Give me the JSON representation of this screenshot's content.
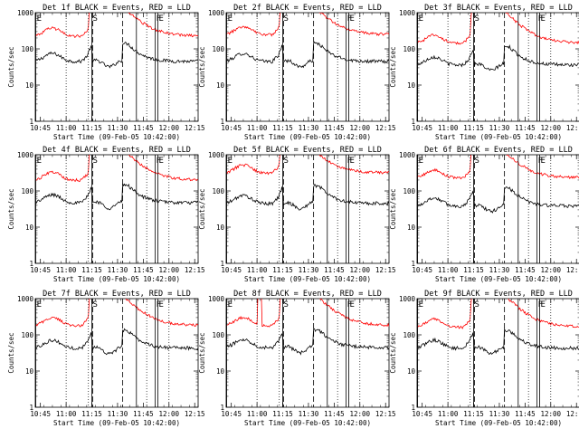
{
  "chart_data": {
    "type": "line",
    "panels": [
      {
        "title": "Det 1f BLACK = Events, RED = LLD",
        "red_scale": 5.0,
        "red_peak": 1.0,
        "black_peak": 1.0,
        "spike": 0
      },
      {
        "title": "Det 2f BLACK = Events, RED = LLD",
        "red_scale": 5.5,
        "red_peak": 1.0,
        "black_peak": 1.0,
        "spike": 0
      },
      {
        "title": "Det 3f BLACK = Events, RED = LLD",
        "red_scale": 4.0,
        "red_peak": 0.75,
        "black_peak": 0.8,
        "spike": 0
      },
      {
        "title": "Det 4f BLACK = Events, RED = LLD",
        "red_scale": 4.2,
        "red_peak": 1.0,
        "black_peak": 1.05,
        "spike": 0
      },
      {
        "title": "Det 5f BLACK = Events, RED = LLD",
        "red_scale": 7.0,
        "red_peak": 0.9,
        "black_peak": 1.0,
        "spike": 0
      },
      {
        "title": "Det 6f BLACK = Events, RED = LLD",
        "red_scale": 6.0,
        "red_peak": 0.8,
        "black_peak": 0.85,
        "spike": 0
      },
      {
        "title": "Det 7f BLACK = Events, RED = LLD",
        "red_scale": 4.2,
        "red_peak": 0.85,
        "black_peak": 0.95,
        "spike": 0
      },
      {
        "title": "Det 8f BLACK = Events, RED = LLD",
        "red_scale": 4.0,
        "red_peak": 1.0,
        "black_peak": 1.0,
        "spike": 1
      },
      {
        "title": "Det 9f BLACK = Events, RED = LLD",
        "red_scale": 3.8,
        "red_peak": 0.85,
        "black_peak": 0.95,
        "spike": 0
      }
    ],
    "xlabel": "Start Time (09-Feb-05 10:42:00)",
    "ylabel": "Counts/sec",
    "x_ticks": [
      "10:45",
      "11:00",
      "11:15",
      "11:30",
      "11:45",
      "12:00",
      "12:15"
    ],
    "x_range_minutes": [
      0,
      95
    ],
    "y_ticks": [
      "1",
      "10",
      "100",
      "1000"
    ],
    "ylim": [
      1,
      1000
    ],
    "log_y": true,
    "series": [
      {
        "name": "BLACK = Events",
        "color": "#000000"
      },
      {
        "name": "RED = LLD",
        "color": "#ff0000"
      }
    ],
    "markers": [
      {
        "label": "E",
        "style": "solid",
        "time_min": 0.3
      },
      {
        "label": "S",
        "style": "solid",
        "time_min": 33
      },
      {
        "label": "F",
        "style": "solid",
        "time_min": 70
      },
      {
        "label": "E",
        "style": "solid",
        "time_min": 71.5
      },
      {
        "label": "",
        "style": "solid",
        "time_min": 59
      },
      {
        "label": "",
        "style": "dashed",
        "time_min": 33.5
      },
      {
        "label": "",
        "style": "dashed",
        "time_min": 51
      },
      {
        "label": "",
        "style": "dotted",
        "time_min": 18
      },
      {
        "label": "",
        "style": "dotted",
        "time_min": 31
      },
      {
        "label": "",
        "style": "dotted",
        "time_min": 65
      },
      {
        "label": "",
        "style": "dotted",
        "time_min": 78
      }
    ],
    "black_baseline": 45,
    "black_hump_peak": 75,
    "black_post_peak": 140,
    "grid": false,
    "legend": "in-title"
  }
}
